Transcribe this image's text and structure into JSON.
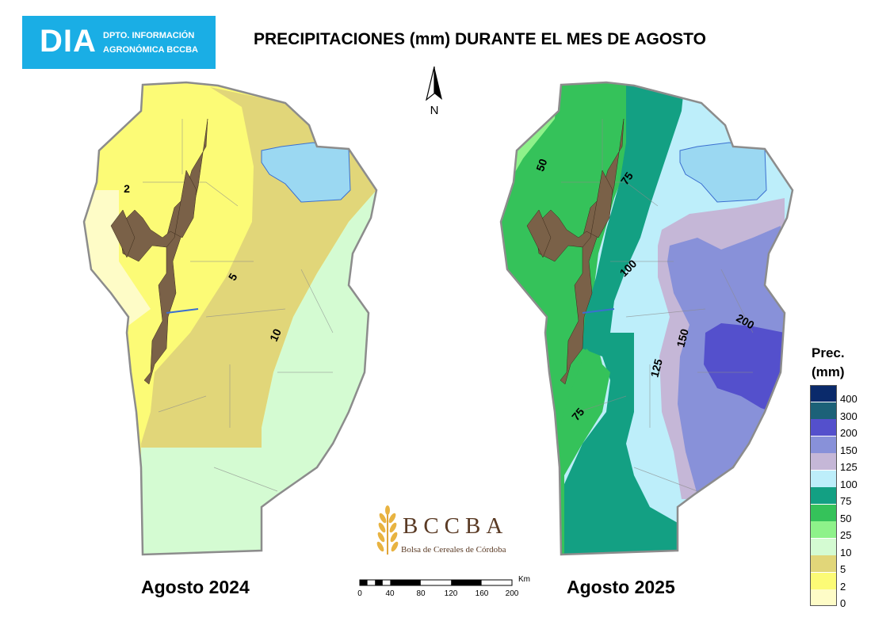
{
  "header": {
    "logo_main": "DIA",
    "logo_line1": "DPTO. INFORMACIÓN",
    "logo_line2": "AGRONÓMICA BCCBA",
    "title": "PRECIPITACIONES (mm) DURANTE EL MES DE AGOSTO"
  },
  "compass": {
    "label": "N",
    "icon": "north-arrow-icon"
  },
  "maps": [
    {
      "caption": "Agosto 2024",
      "isolines": [
        "2",
        "5",
        "10"
      ]
    },
    {
      "caption": "Agosto 2025",
      "isolines": [
        "50",
        "75",
        "100",
        "125",
        "150",
        "200",
        "75"
      ]
    }
  ],
  "brand": {
    "name": "BCCBA",
    "subtitle": "Bolsa de Cereales de Córdoba",
    "icon": "wheat-icon"
  },
  "scale_bar": {
    "unit": "Km",
    "ticks": [
      "0",
      "40",
      "80",
      "120",
      "160",
      "200"
    ]
  },
  "legend": {
    "title_line1": "Prec.",
    "title_line2": "(mm)",
    "classes": [
      {
        "label": "400",
        "color": "#0a2a6b"
      },
      {
        "label": "300",
        "color": "#1c6178"
      },
      {
        "label": "200",
        "color": "#5450cc"
      },
      {
        "label": "150",
        "color": "#8891d9"
      },
      {
        "label": "125",
        "color": "#c5b7d7"
      },
      {
        "label": "100",
        "color": "#bdeefa"
      },
      {
        "label": "75",
        "color": "#13a083"
      },
      {
        "label": "50",
        "color": "#35c25a"
      },
      {
        "label": "25",
        "color": "#8ef28a"
      },
      {
        "label": "10",
        "color": "#d4fbd2"
      },
      {
        "label": "5",
        "color": "#e1d679"
      },
      {
        "label": "2",
        "color": "#fcfb76"
      },
      {
        "label": "0",
        "color": "#fefcc7"
      }
    ]
  },
  "colors": {
    "mountains": "#7a6148",
    "lake": "#9bd8f2",
    "boundary": "#8c8c8c"
  }
}
